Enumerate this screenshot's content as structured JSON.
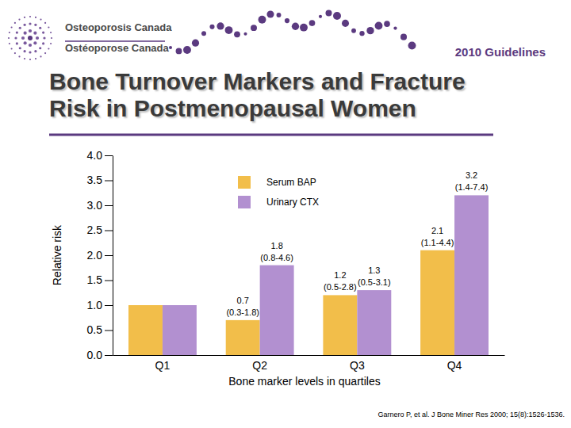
{
  "logo_text": [
    "Osteoporosis Canada",
    "Ostéoporose Canada"
  ],
  "header": "2010 Guidelines",
  "source": "Garnero P, et al. J Bone Miner Res 2000; 15(8):1526-1536.",
  "chart_data": {
    "type": "bar",
    "title": "Bone Turnover Markers and Fracture Risk in Postmenopausal Women",
    "x_label": "Bone marker levels in quartiles",
    "y_label": "Relative risk",
    "categories": [
      "Q1",
      "Q2",
      "Q3",
      "Q4"
    ],
    "series": [
      {
        "name": "Serum BAP",
        "color": "#f2be4a",
        "values": [
          1.0,
          0.7,
          1.2,
          2.1
        ],
        "value_labels": [
          null,
          "0.7 (0.3-1.8)",
          "1.2 (0.5-2.8)",
          "2.1 (1.1-4.4)"
        ]
      },
      {
        "name": "Urinary CTX",
        "color": "#b290d0",
        "values": [
          1.0,
          1.8,
          1.3,
          3.2
        ],
        "value_labels": [
          null,
          "1.8 (0.8-4.6)",
          "1.3 (0.5-3.1)",
          "3.2 (1.4-7.4)"
        ]
      }
    ],
    "ylim": [
      0,
      4
    ],
    "yticks": [
      {
        "value": 0,
        "label": "0.0"
      },
      0.5,
      {
        "value": 1,
        "label": "1.0"
      },
      1.5,
      {
        "value": 2,
        "label": "2.0"
      },
      2.5,
      {
        "value": 3,
        "label": "3.0"
      },
      3.5,
      {
        "value": 4,
        "label": "4.0"
      }
    ],
    "grid": false,
    "legend": "top",
    "data_labels": true
  }
}
